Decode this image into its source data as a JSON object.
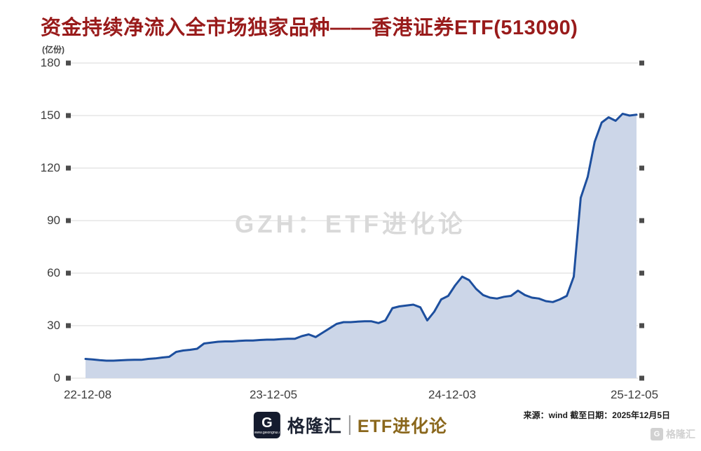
{
  "header": {
    "title": "资金持续净流入全市场独家品种——香港证券ETF(513090)"
  },
  "watermark": {
    "center": "GZH：ETF进化论",
    "corner": "格隆汇"
  },
  "footer": {
    "source": "来源：wind 截至日期：2025年12月5日",
    "logo_g": "G",
    "logo_url": "www.gelonghui.com",
    "brand": "格隆汇",
    "brand_sub": "ETF进化论"
  },
  "chart_data": {
    "type": "area",
    "title": "资金持续净流入全市场独家品种——香港证券ETF(513090)",
    "unit": "(亿份)",
    "ylabel": "份额(亿份)",
    "ylim": [
      0,
      180
    ],
    "yticks": [
      180,
      150,
      120,
      90,
      60,
      30,
      0
    ],
    "xticks": [
      "22-12-08",
      "23-12-05",
      "24-12-03",
      "25-12-05"
    ],
    "grid": true,
    "values": [
      11,
      10.7,
      10.3,
      10,
      10,
      10.2,
      10.4,
      10.5,
      10.5,
      11,
      11.3,
      11.8,
      12.2,
      15,
      15.8,
      16.2,
      16.8,
      19.8,
      20.3,
      20.8,
      21,
      21,
      21.3,
      21.5,
      21.5,
      21.8,
      22,
      22,
      22.3,
      22.5,
      22.5,
      24,
      25,
      23.5,
      26,
      28.5,
      31,
      32,
      32,
      32.3,
      32.5,
      32.5,
      31.5,
      33,
      40,
      41,
      41.5,
      42,
      40.5,
      33,
      38,
      45,
      47,
      53,
      58,
      56,
      51,
      47.5,
      46,
      45.5,
      46.5,
      47,
      50,
      47.5,
      46,
      45.5,
      44,
      43.5,
      45,
      47,
      58,
      103,
      115,
      135,
      146,
      149,
      147,
      151,
      150,
      150.5
    ],
    "colors": {
      "line": "#1d4f9e",
      "fill": "#ccd6e8",
      "grid": "#d9d9d9",
      "tick_marker": "#4c4c4c",
      "title": "#991b1b",
      "brand_sub": "#8a671c"
    }
  }
}
